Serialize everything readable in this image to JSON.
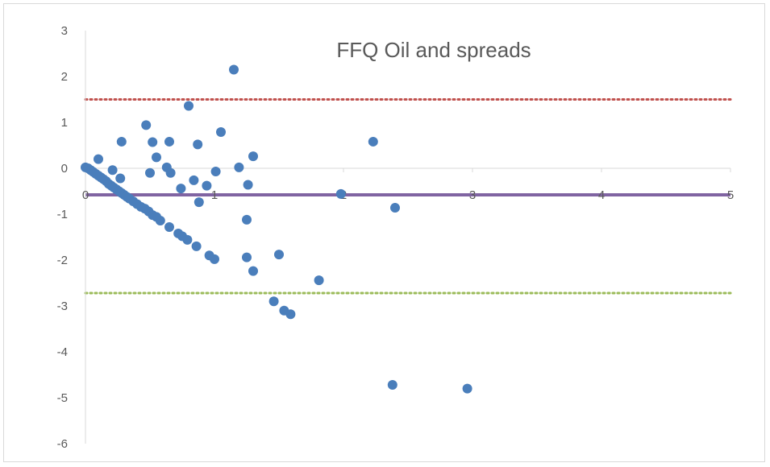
{
  "chart_data": {
    "type": "scatter",
    "title": "FFQ Oil and spreads",
    "xlabel": "",
    "ylabel": "",
    "xlim": [
      0,
      5
    ],
    "ylim": [
      -6,
      3
    ],
    "x_ticks": [
      "0",
      "1",
      "2",
      "3",
      "4",
      "5"
    ],
    "y_ticks": [
      "3",
      "2",
      "1",
      "0",
      "-1",
      "-2",
      "-3",
      "-4",
      "-5",
      "-6"
    ],
    "grid": false,
    "point_color": "#4a7ebb",
    "reference_lines": [
      {
        "y": 1.5,
        "style": "dotted",
        "color": "#c0504d"
      },
      {
        "y": -0.58,
        "style": "solid",
        "color": "#8064a2"
      },
      {
        "y": -2.72,
        "style": "dotted",
        "color": "#9bbb59"
      }
    ],
    "points": [
      {
        "x": 0.0,
        "y": 0.02
      },
      {
        "x": 0.02,
        "y": 0.0
      },
      {
        "x": 0.04,
        "y": -0.04
      },
      {
        "x": 0.06,
        "y": -0.08
      },
      {
        "x": 0.08,
        "y": -0.12
      },
      {
        "x": 0.1,
        "y": -0.16
      },
      {
        "x": 0.12,
        "y": -0.2
      },
      {
        "x": 0.14,
        "y": -0.24
      },
      {
        "x": 0.16,
        "y": -0.28
      },
      {
        "x": 0.18,
        "y": -0.34
      },
      {
        "x": 0.2,
        "y": -0.38
      },
      {
        "x": 0.22,
        "y": -0.42
      },
      {
        "x": 0.24,
        "y": -0.46
      },
      {
        "x": 0.26,
        "y": -0.5
      },
      {
        "x": 0.28,
        "y": -0.54
      },
      {
        "x": 0.3,
        "y": -0.58
      },
      {
        "x": 0.32,
        "y": -0.62
      },
      {
        "x": 0.34,
        "y": -0.66
      },
      {
        "x": 0.37,
        "y": -0.72
      },
      {
        "x": 0.4,
        "y": -0.78
      },
      {
        "x": 0.43,
        "y": -0.84
      },
      {
        "x": 0.46,
        "y": -0.88
      },
      {
        "x": 0.49,
        "y": -0.94
      },
      {
        "x": 0.52,
        "y": -1.02
      },
      {
        "x": 0.55,
        "y": -1.06
      },
      {
        "x": 0.58,
        "y": -1.14
      },
      {
        "x": 0.65,
        "y": -1.28
      },
      {
        "x": 0.72,
        "y": -1.42
      },
      {
        "x": 0.75,
        "y": -1.48
      },
      {
        "x": 0.79,
        "y": -1.56
      },
      {
        "x": 0.86,
        "y": -1.7
      },
      {
        "x": 0.96,
        "y": -1.9
      },
      {
        "x": 1.0,
        "y": -1.98
      },
      {
        "x": 0.1,
        "y": 0.2
      },
      {
        "x": 0.21,
        "y": -0.04
      },
      {
        "x": 0.27,
        "y": -0.22
      },
      {
        "x": 0.28,
        "y": 0.58
      },
      {
        "x": 0.47,
        "y": 0.94
      },
      {
        "x": 0.5,
        "y": -0.1
      },
      {
        "x": 0.52,
        "y": 0.57
      },
      {
        "x": 0.55,
        "y": 0.24
      },
      {
        "x": 0.63,
        "y": 0.02
      },
      {
        "x": 0.65,
        "y": 0.58
      },
      {
        "x": 0.66,
        "y": -0.1
      },
      {
        "x": 0.74,
        "y": -0.44
      },
      {
        "x": 0.8,
        "y": 1.36
      },
      {
        "x": 0.84,
        "y": -0.26
      },
      {
        "x": 0.87,
        "y": 0.52
      },
      {
        "x": 0.88,
        "y": -0.74
      },
      {
        "x": 0.94,
        "y": -0.38
      },
      {
        "x": 1.01,
        "y": -0.07
      },
      {
        "x": 1.05,
        "y": 0.79
      },
      {
        "x": 1.15,
        "y": 2.15
      },
      {
        "x": 1.19,
        "y": 0.02
      },
      {
        "x": 1.25,
        "y": -1.12
      },
      {
        "x": 1.25,
        "y": -1.94
      },
      {
        "x": 1.26,
        "y": -0.36
      },
      {
        "x": 1.3,
        "y": 0.26
      },
      {
        "x": 1.3,
        "y": -2.24
      },
      {
        "x": 1.46,
        "y": -2.9
      },
      {
        "x": 1.5,
        "y": -1.88
      },
      {
        "x": 1.54,
        "y": -3.1
      },
      {
        "x": 1.59,
        "y": -3.18
      },
      {
        "x": 1.81,
        "y": -2.44
      },
      {
        "x": 1.98,
        "y": -0.56
      },
      {
        "x": 2.23,
        "y": 0.58
      },
      {
        "x": 2.38,
        "y": -4.72
      },
      {
        "x": 2.4,
        "y": -0.86
      },
      {
        "x": 2.96,
        "y": -4.8
      }
    ]
  }
}
